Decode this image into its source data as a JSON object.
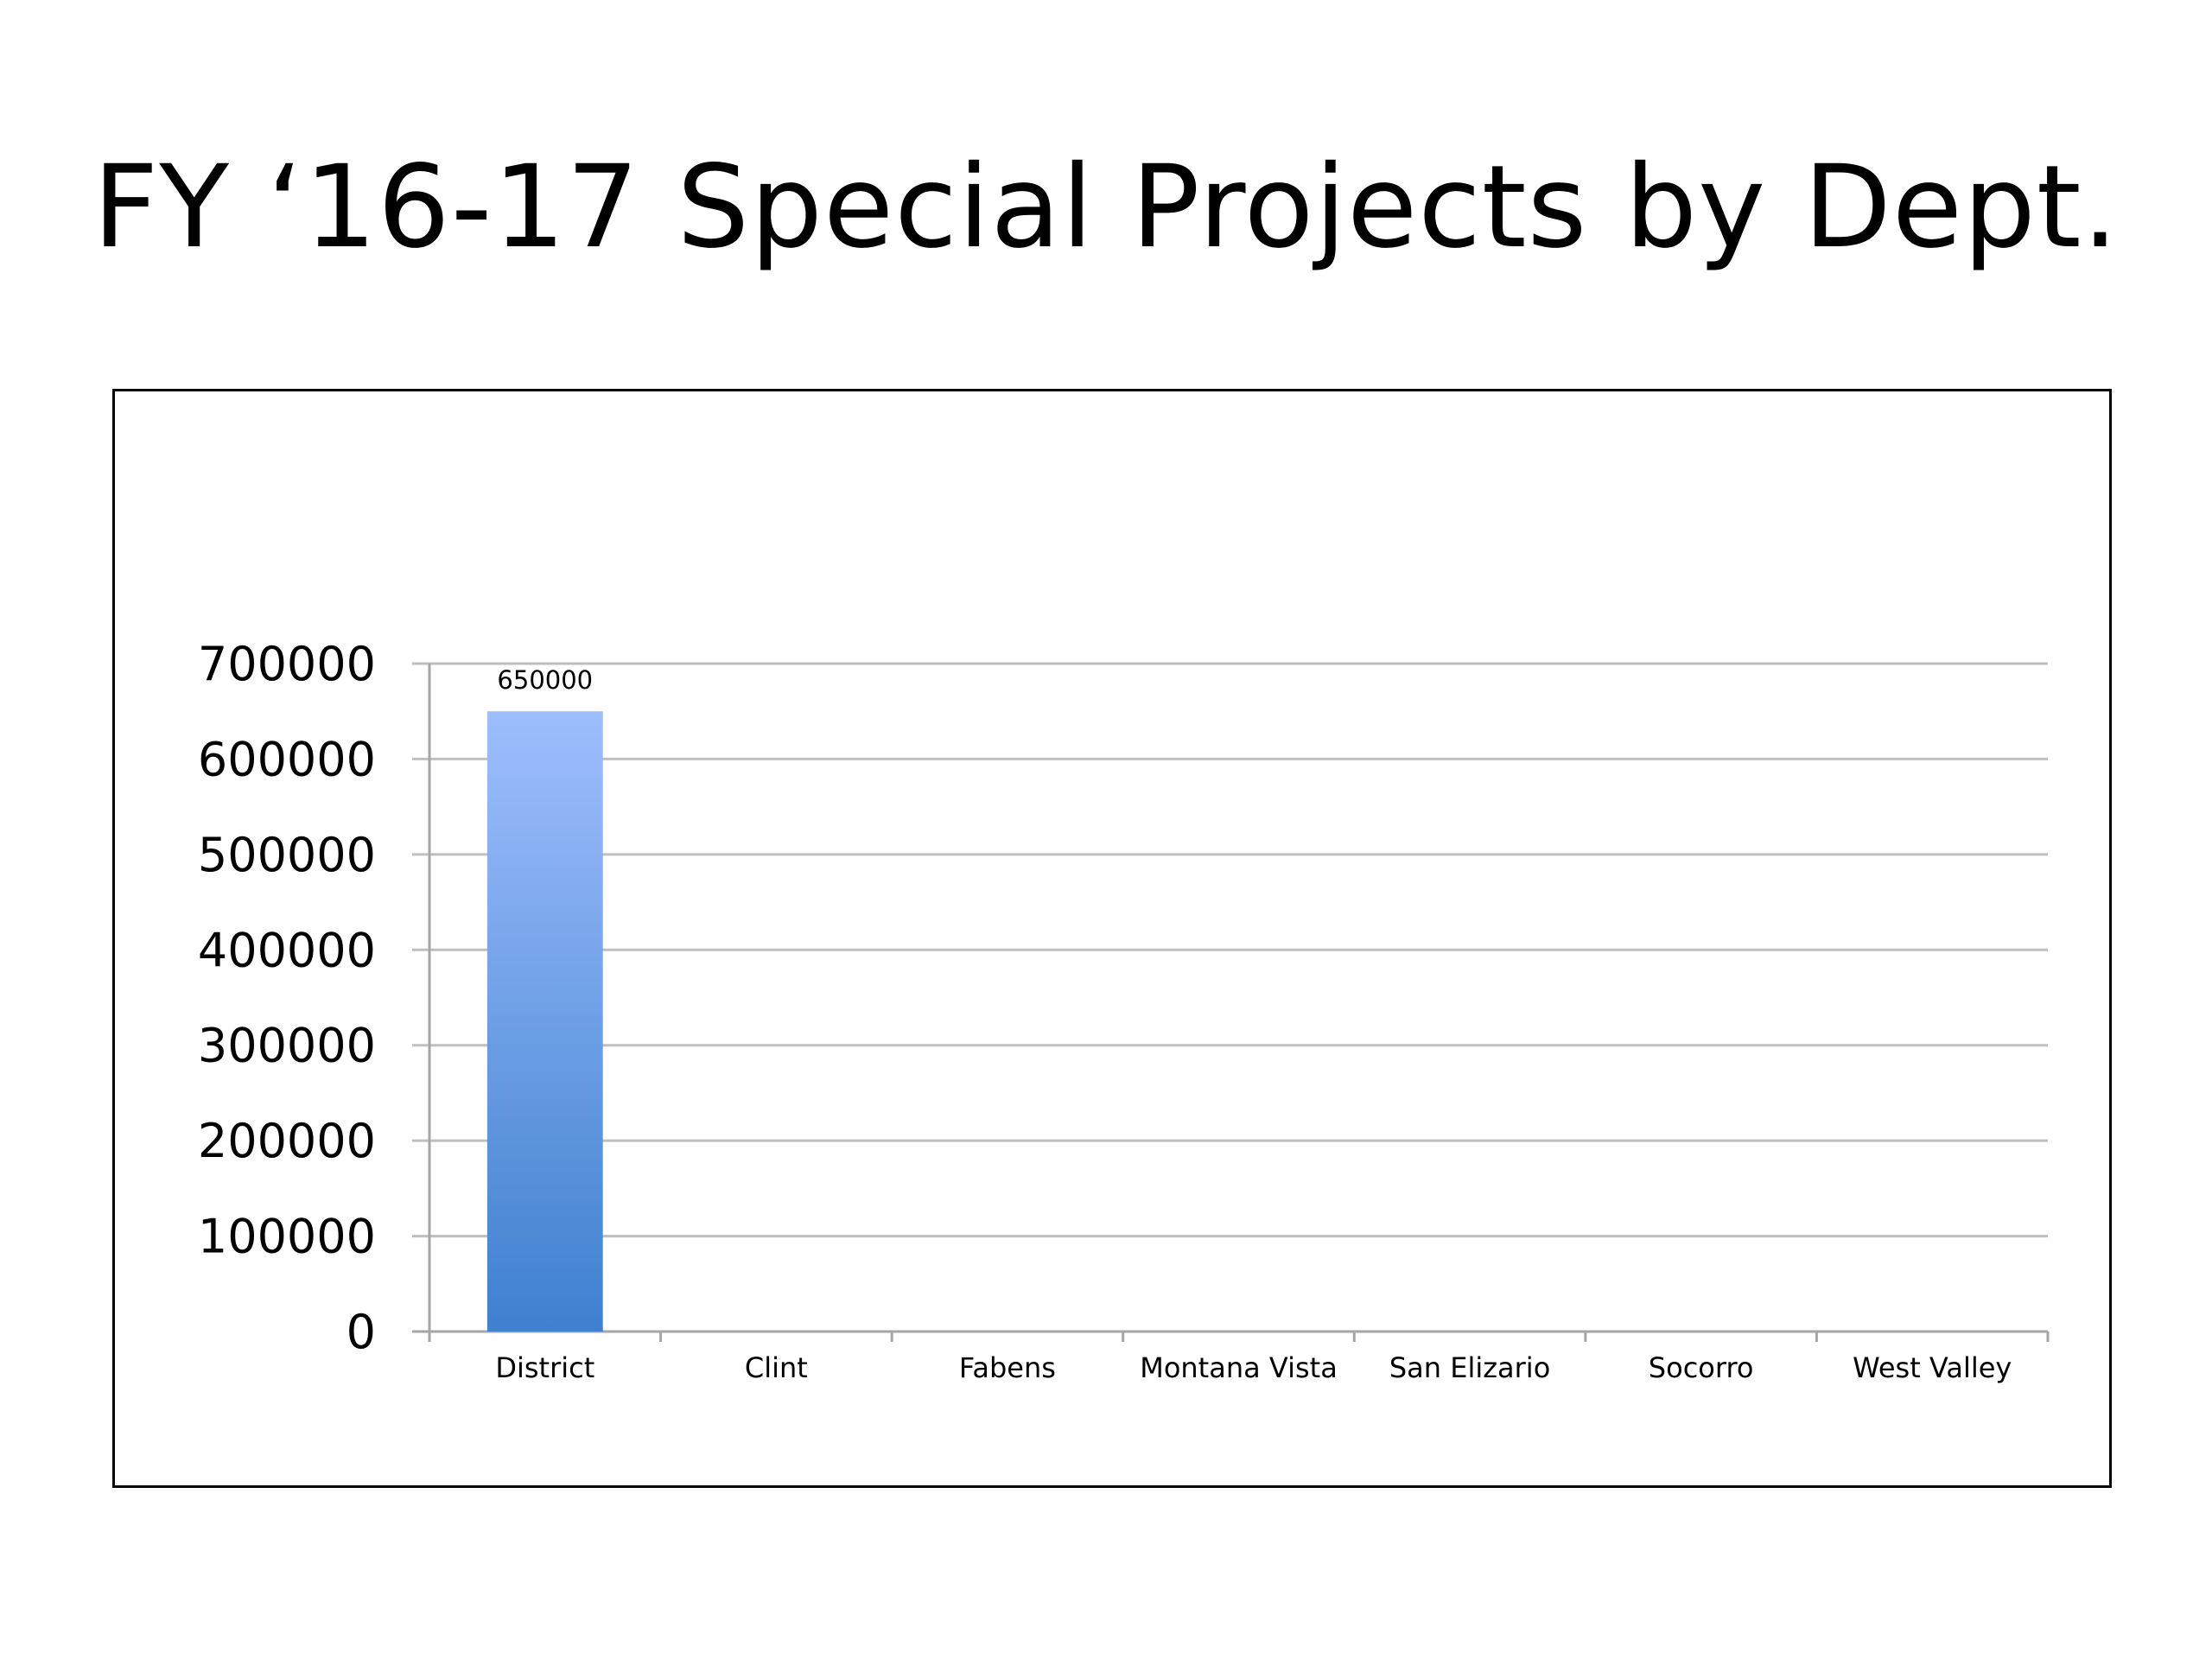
{
  "slide": {
    "title": "FY ‘16-17 Special Projects by Dept."
  },
  "chart_data": {
    "type": "bar",
    "title": "",
    "xlabel": "",
    "ylabel": "",
    "categories": [
      "District",
      "Clint",
      "Fabens",
      "Montana Vista",
      "San Elizario",
      "Socorro",
      "West Valley"
    ],
    "values": [
      650000,
      0,
      0,
      0,
      0,
      0,
      0
    ],
    "data_labels": [
      "650000",
      "",
      "",
      "",
      "",
      "",
      ""
    ],
    "ylim": [
      0,
      700000
    ],
    "yticks": [
      0,
      100000,
      200000,
      300000,
      400000,
      500000,
      600000,
      700000
    ],
    "ytick_labels": [
      "0",
      "100000",
      "200000",
      "300000",
      "400000",
      "500000",
      "600000",
      "700000"
    ],
    "grid": true,
    "legend": "none",
    "colors": {
      "bar_top": "#9dbefc",
      "bar_bottom": "#3f80cf",
      "gridline": "#bfbfbf",
      "axis": "#a6a6a6"
    }
  }
}
